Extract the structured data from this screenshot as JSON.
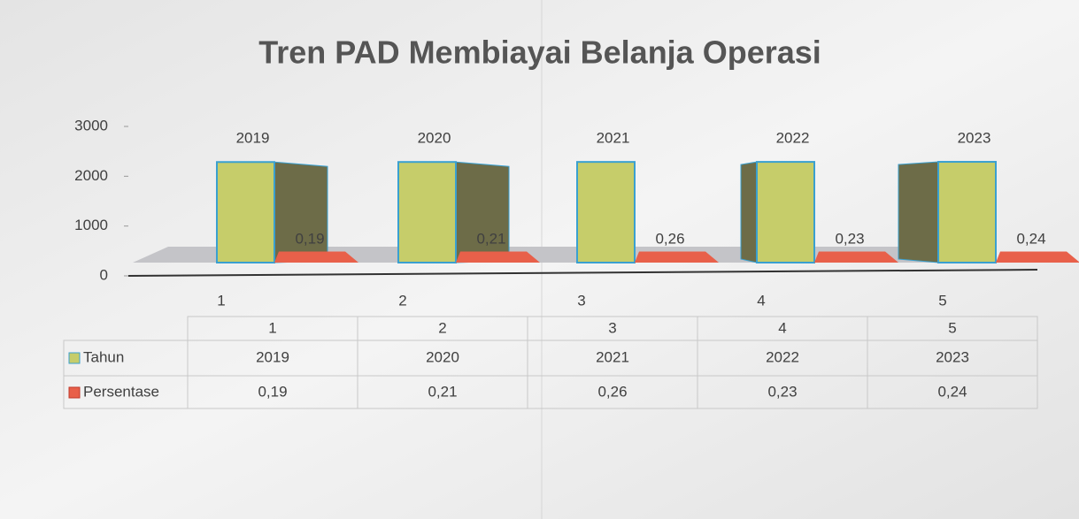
{
  "chart_data": {
    "type": "bar3d",
    "title": "Tren PAD Membiayai Belanja Operasi",
    "categories": [
      "1",
      "2",
      "3",
      "4",
      "5"
    ],
    "series": [
      {
        "name": "Tahun",
        "color": "#c6cd6a",
        "values": [
          2019,
          2020,
          2021,
          2022,
          2023
        ]
      },
      {
        "name": "Persentase",
        "color": "#e8604a",
        "values": [
          0.19,
          0.21,
          0.26,
          0.23,
          0.24
        ],
        "value_labels": [
          "0,19",
          "0,21",
          "0,26",
          "0,23",
          "0,24"
        ]
      }
    ],
    "ylim": [
      0,
      3000
    ],
    "yticks": [
      0,
      1000,
      2000,
      3000
    ],
    "data_table": true
  }
}
